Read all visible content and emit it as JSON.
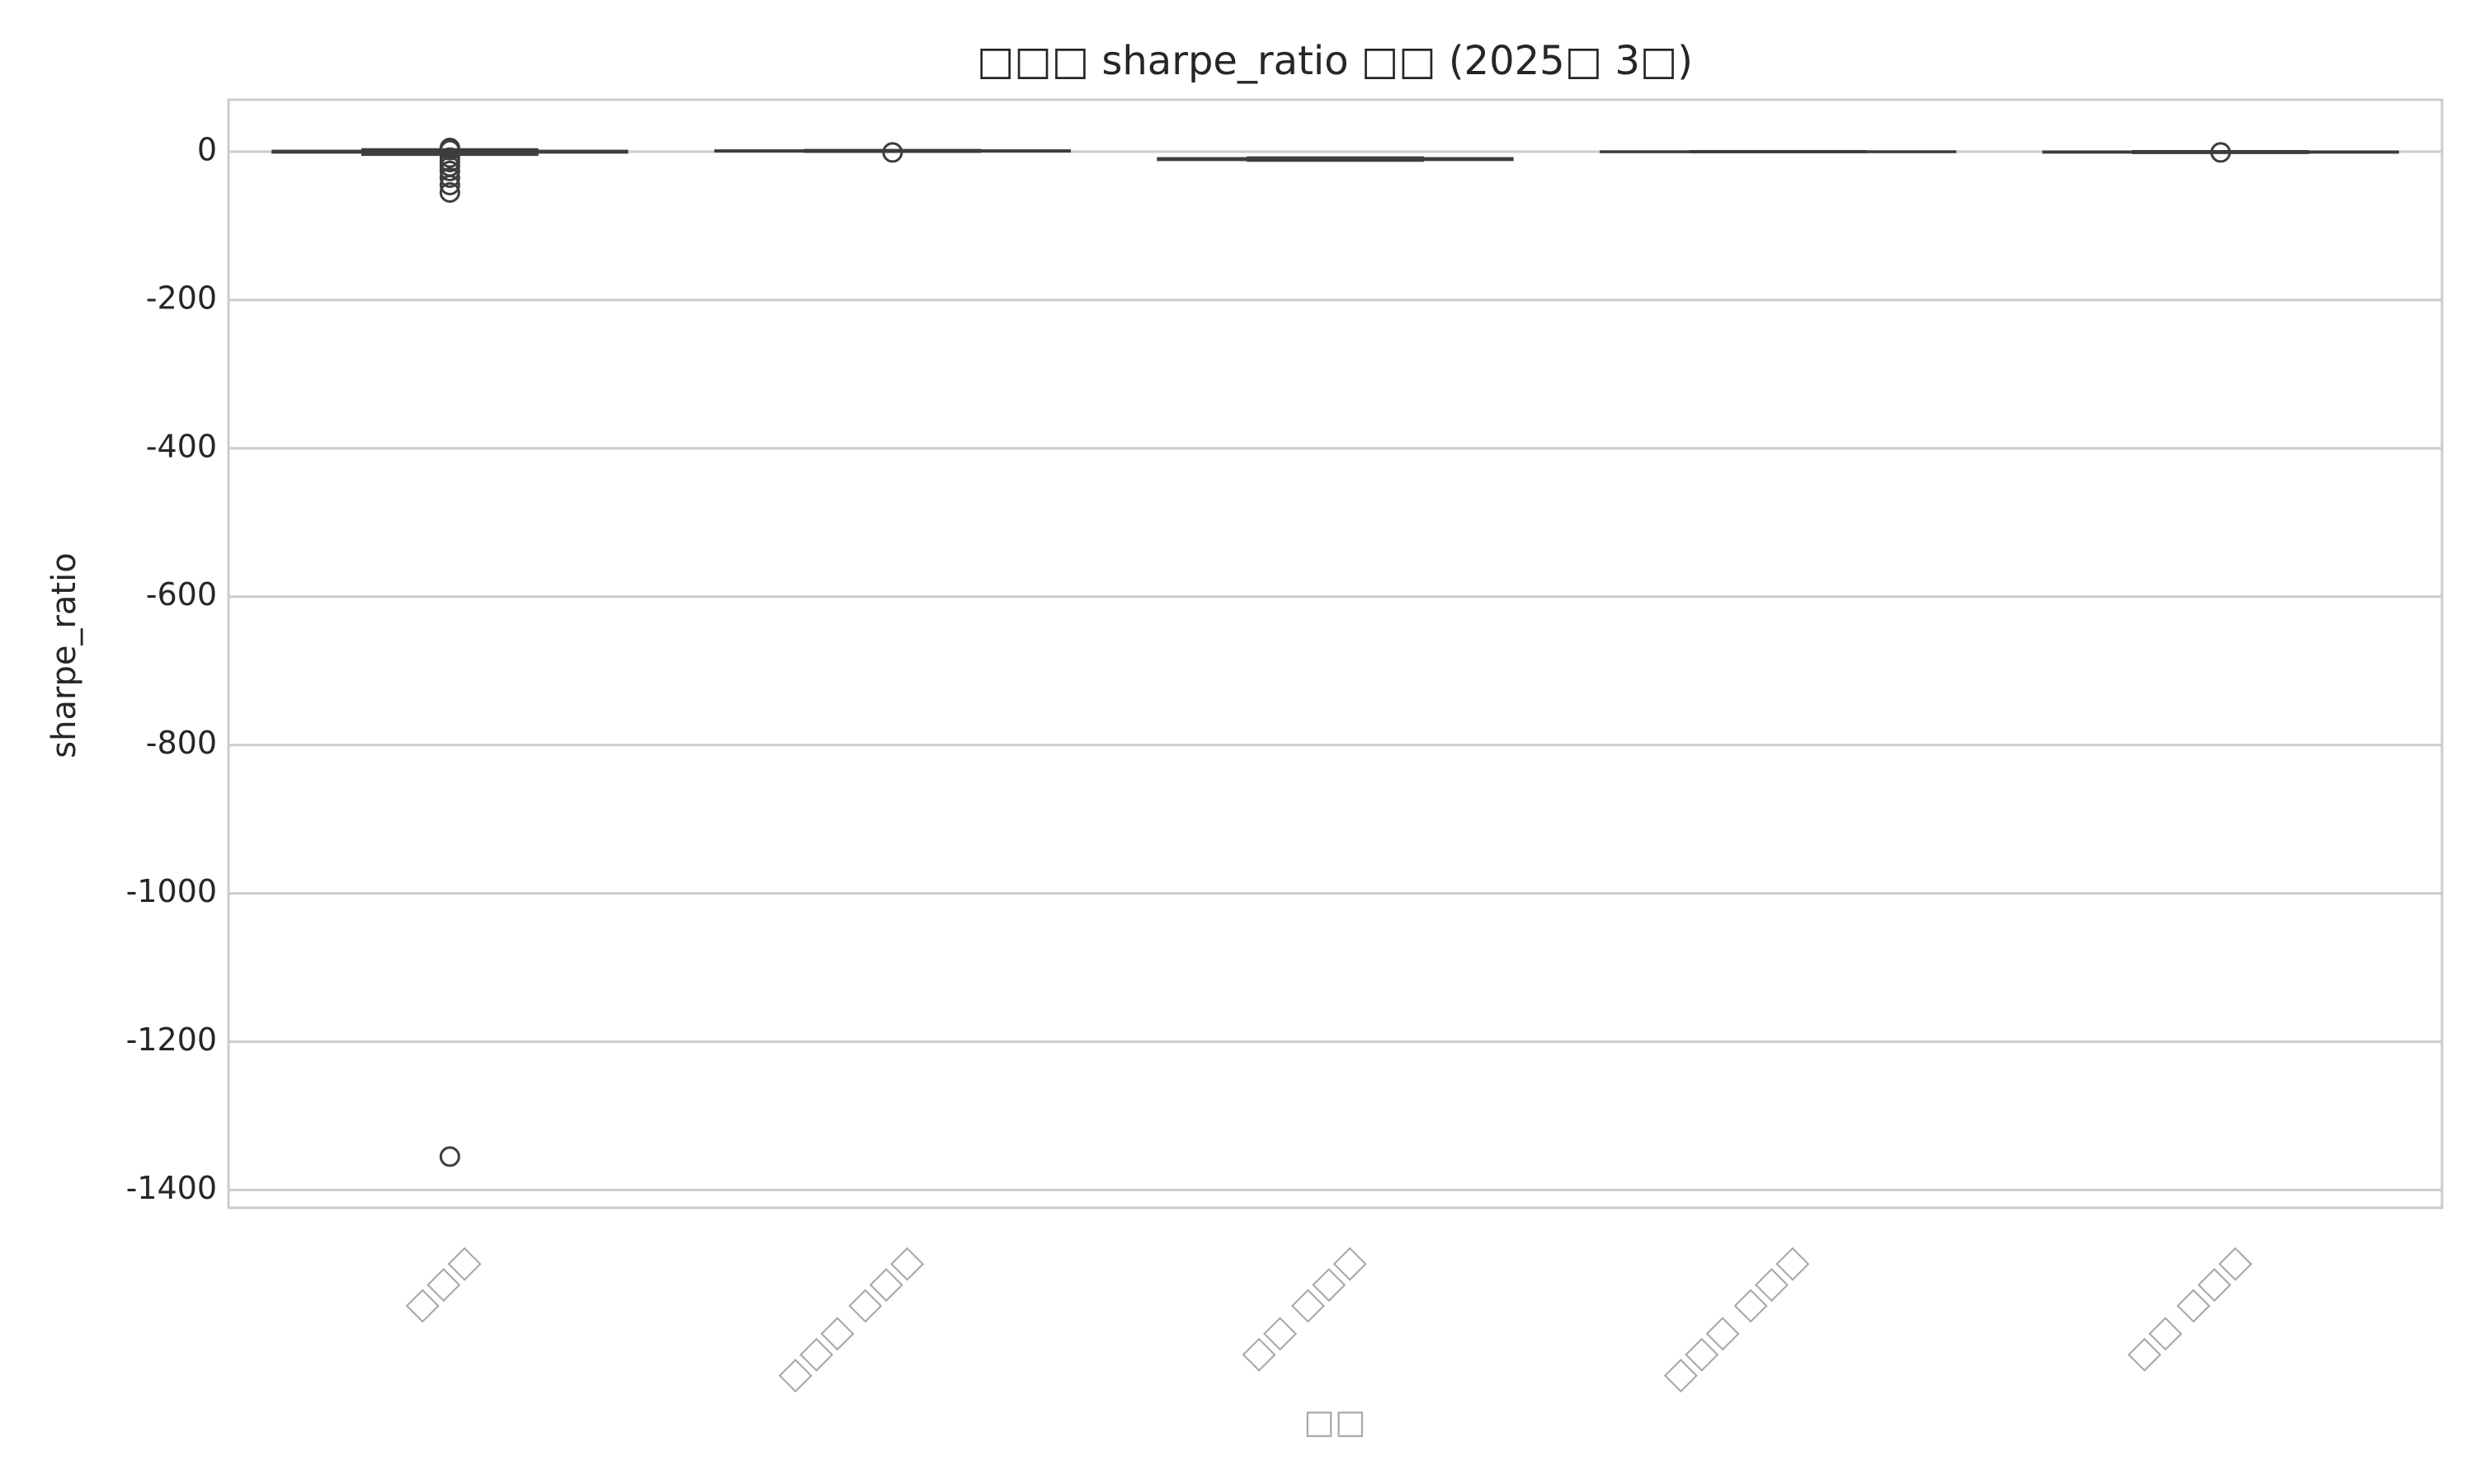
{
  "chart_data": {
    "type": "box",
    "title": "□□□ sharpe_ratio □□ (2025□ 3□)",
    "x_label": "□□",
    "y_label": "sharpe_ratio",
    "categories": [
      "□□□",
      "□□□ □□□",
      "□□ □□□",
      "□□□ □□□",
      "□□ □□□"
    ],
    "boxes": [
      {
        "whislo": -4,
        "q1": -1,
        "med": 0,
        "q3": 1,
        "whishi": 3,
        "fliers": [
          5,
          2,
          -8,
          -14,
          -20,
          -26,
          -35,
          -45,
          -55,
          -1355
        ]
      },
      {
        "whislo": 0,
        "q1": 0.5,
        "med": 1,
        "q3": 1.5,
        "whishi": 2,
        "fliers": [
          -1
        ]
      },
      {
        "whislo": -12,
        "q1": -11,
        "med": -10,
        "q3": -9,
        "whishi": -8,
        "fliers": []
      },
      {
        "whislo": -0.5,
        "q1": -0.2,
        "med": 0,
        "q3": 0.2,
        "whishi": 0.5,
        "fliers": []
      },
      {
        "whislo": -1.5,
        "q1": -1,
        "med": -0.5,
        "q3": 0,
        "whishi": 0.5,
        "fliers": [
          -1
        ]
      }
    ],
    "color": "#3d3d3d",
    "ylim": [
      -1424,
      70
    ],
    "yticks": [
      0,
      -200,
      -400,
      -600,
      -800,
      -1000,
      -1200,
      -1400
    ],
    "grid": true
  }
}
